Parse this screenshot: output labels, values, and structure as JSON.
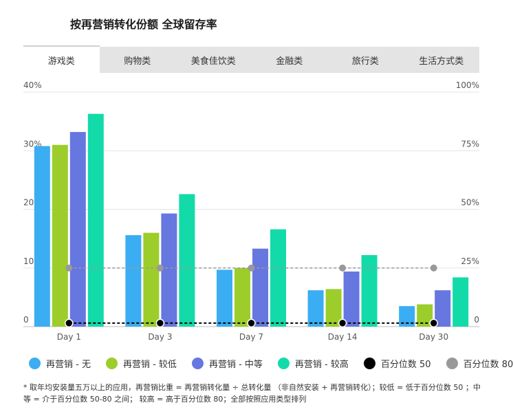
{
  "title": "按再营销转化份额 全球留存率",
  "tabs": [
    {
      "label": "游戏类",
      "active": true
    },
    {
      "label": "购物类",
      "active": false
    },
    {
      "label": "美食佳饮类",
      "active": false
    },
    {
      "label": "金融类",
      "active": false
    },
    {
      "label": "旅行类",
      "active": false
    },
    {
      "label": "生活方式类",
      "active": false
    }
  ],
  "chart_data": {
    "type": "bar",
    "categories": [
      "Day 1",
      "Day 3",
      "Day 7",
      "Day 14",
      "Day 30"
    ],
    "series": [
      {
        "name": "再营销 - 无",
        "color": "#3badf2",
        "values": [
          30.8,
          15.6,
          9.7,
          6.2,
          3.5
        ]
      },
      {
        "name": "再营销 - 较低",
        "color": "#9ccd2a",
        "values": [
          31.0,
          16.0,
          10.0,
          6.4,
          3.8
        ]
      },
      {
        "name": "再营销 - 中等",
        "color": "#6677e0",
        "values": [
          33.2,
          19.3,
          13.3,
          9.4,
          6.2
        ]
      },
      {
        "name": "再营销 - 较高",
        "color": "#12dba9",
        "values": [
          36.3,
          22.6,
          16.6,
          12.2,
          8.4
        ]
      }
    ],
    "line_series": [
      {
        "name": "百分位数 50",
        "color": "#000000",
        "axis": "right",
        "style": "dashed",
        "values": [
          1.5,
          1.5,
          1.5,
          1.5,
          1.5
        ]
      },
      {
        "name": "百分位数 80",
        "color": "#999999",
        "axis": "right",
        "style": "dashed",
        "values": [
          25,
          25,
          25,
          25,
          25
        ]
      }
    ],
    "ylim": [
      0,
      40
    ],
    "y_ticks": [
      "0",
      "10%",
      "20%",
      "30%",
      "40%"
    ],
    "y2lim": [
      0,
      100
    ],
    "y2_ticks": [
      "0",
      "25%",
      "50%",
      "75%",
      "100%"
    ],
    "grid": true
  },
  "legend": [
    {
      "label": "再营销 - 无",
      "color": "#3badf2"
    },
    {
      "label": "再营销 - 较低",
      "color": "#9ccd2a"
    },
    {
      "label": "再营销 - 中等",
      "color": "#6677e0"
    },
    {
      "label": "再营销 - 较高",
      "color": "#12dba9"
    },
    {
      "label": "百分位数 50",
      "color": "#000000"
    },
    {
      "label": "百分位数 80",
      "color": "#999999"
    }
  ],
  "footnote": "* 取年均安装量五万以上的应用，再营销比重 = 再营销转化量 ÷ 总转化量 （非自然安装 + 再营销转化）；较低 = 低于百分位数 50 ；中等 = 介于百分位数 50-80 之间； 较高 = 高于百分位数 80；全部按照应用类型排列"
}
